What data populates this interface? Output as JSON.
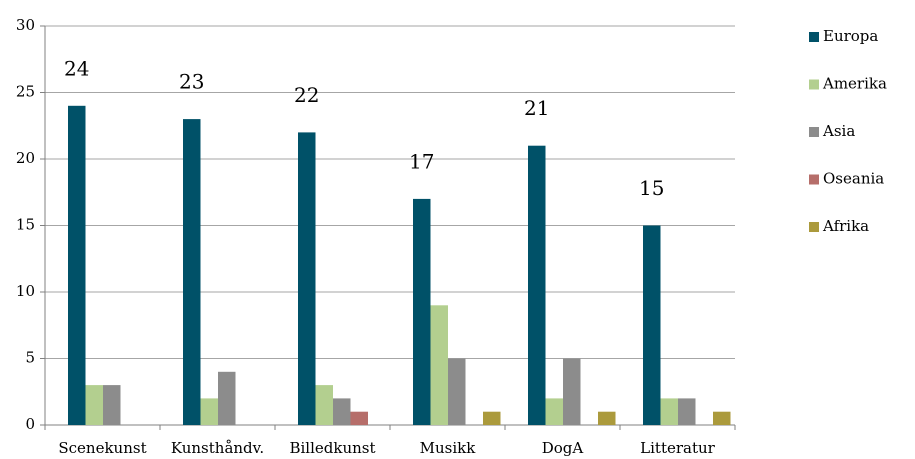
{
  "chart_data": {
    "type": "bar",
    "categories": [
      "Scenekunst",
      "Kunsthåndv.",
      "Billedkunst",
      "Musikk",
      "DogA",
      "Litteratur"
    ],
    "series": [
      {
        "name": "Europa",
        "color": "#005168",
        "values": [
          24,
          23,
          22,
          17,
          21,
          15
        ],
        "data_labels": true
      },
      {
        "name": "Amerika",
        "color": "#b3cf8f",
        "values": [
          3,
          2,
          3,
          9,
          2,
          2
        ]
      },
      {
        "name": "Asia",
        "color": "#8c8c8c",
        "values": [
          3,
          4,
          2,
          5,
          5,
          2
        ]
      },
      {
        "name": "Oseania",
        "color": "#b66e6a",
        "values": [
          0,
          0,
          1,
          0,
          0,
          0
        ]
      },
      {
        "name": "Afrika",
        "color": "#ab9a3c",
        "values": [
          0,
          0,
          0,
          1,
          1,
          1
        ]
      }
    ],
    "ylim": [
      0,
      30
    ],
    "yticks": [
      0,
      5,
      10,
      15,
      20,
      25,
      30
    ],
    "grid": true,
    "legend": "right"
  }
}
